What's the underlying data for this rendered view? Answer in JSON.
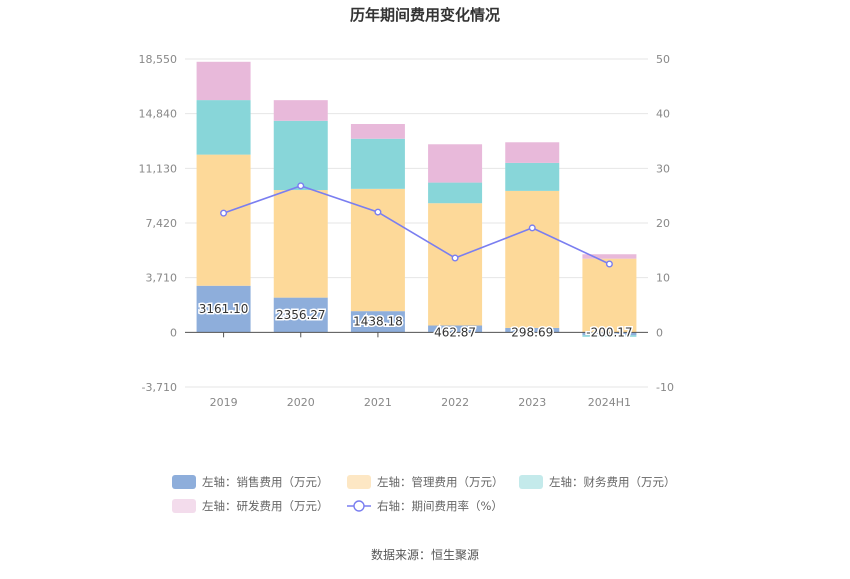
{
  "chart_data": {
    "type": "bar",
    "title": "历年期间费用变化情况",
    "source_note": "数据来源：恒生聚源",
    "categories": [
      "2019",
      "2020",
      "2021",
      "2022",
      "2023",
      "2024H1"
    ],
    "left_axis": {
      "ylim": [
        -3710,
        18550
      ],
      "ticks": [
        -3710,
        0,
        3710,
        7420,
        11130,
        14840,
        18550
      ],
      "tick_labels": [
        "-3,710",
        "0",
        "3,710",
        "7,420",
        "11,130",
        "14,840",
        "18,550"
      ]
    },
    "right_axis": {
      "ylim": [
        -10,
        50
      ],
      "ticks": [
        -10,
        0,
        10,
        20,
        30,
        40,
        50
      ],
      "tick_labels": [
        "-10",
        "0",
        "10",
        "20",
        "30",
        "40",
        "50"
      ]
    },
    "stacked": true,
    "series": [
      {
        "name": "左轴：销售费用（万元）",
        "axis": "left",
        "color": "#8eaedb",
        "values": [
          3161.1,
          2356.27,
          1438.18,
          462.87,
          298.69,
          -200.17
        ],
        "labels": [
          "3161.10",
          "2356.27",
          "1438.18",
          "462.87",
          "298.69",
          "-200.17"
        ]
      },
      {
        "name": "左轴：管理费用（万元）",
        "axis": "left",
        "color": "#fdd999",
        "values": [
          8900,
          7300,
          8300,
          8300,
          9300,
          5000
        ]
      },
      {
        "name": "左轴：财务费用（万元）",
        "axis": "left",
        "color": "#88d6d9",
        "values": [
          3700,
          4700,
          3400,
          1400,
          1900,
          -100
        ]
      },
      {
        "name": "左轴：研发费用（万元）",
        "axis": "left",
        "color": "#e8b9da",
        "values": [
          2600,
          1400,
          1000,
          2600,
          1400,
          300
        ]
      }
    ],
    "line_series": {
      "name": "右轴：期间费用率（%）",
      "axis": "right",
      "color": "#7a7ef0",
      "values": [
        21.8,
        26.8,
        22.0,
        13.6,
        19.1,
        12.5
      ]
    },
    "grid": true,
    "legend_position": "bottom",
    "legend_swatch_colors": [
      "#8eaedb",
      "#fde7c4",
      "#c4eaeb",
      "#f3dcec",
      "#8a8ef2"
    ]
  }
}
